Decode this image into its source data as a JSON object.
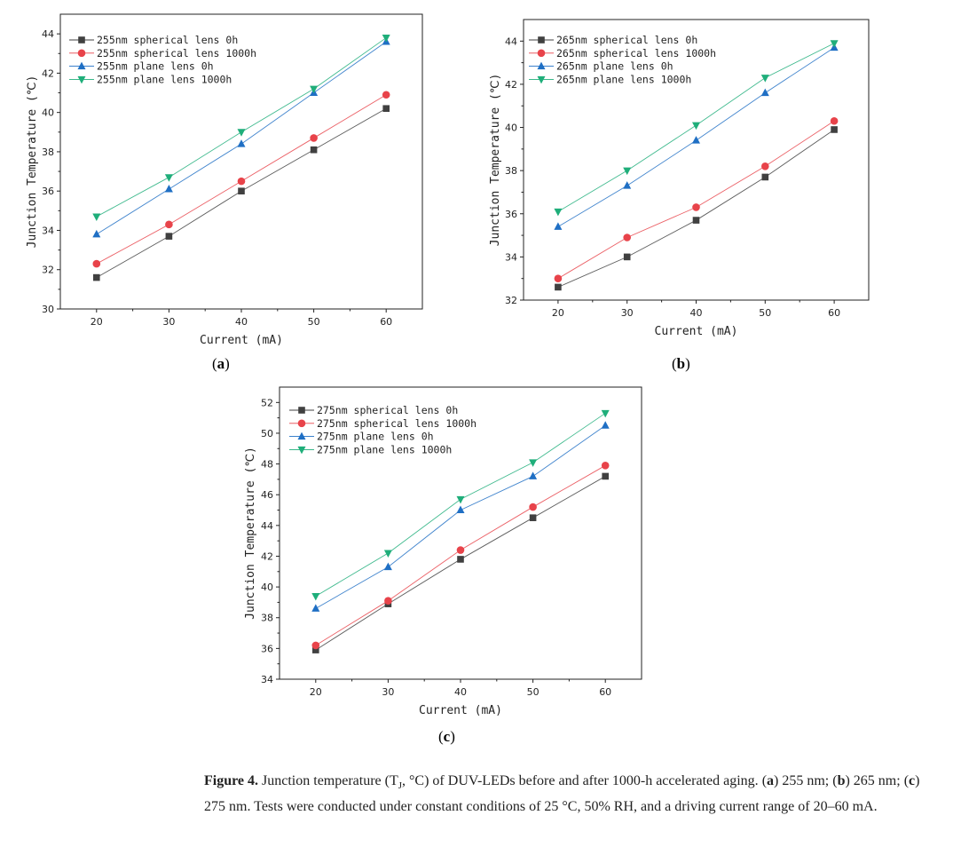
{
  "colors": {
    "spherical_0h": "#404040",
    "spherical_1000h": "#e8434a",
    "plane_0h": "#1f6fc4",
    "plane_1000h": "#1fae7a"
  },
  "chart_data": [
    {
      "id": "a",
      "type": "line",
      "xlabel": "Current (mA)",
      "ylabel": "Junction Temperature (℃)",
      "xlim": [
        15,
        65
      ],
      "ylim": [
        30,
        45
      ],
      "xticks": [
        20,
        30,
        40,
        50,
        60
      ],
      "yticks": [
        30,
        32,
        34,
        36,
        38,
        40,
        42,
        44
      ],
      "x": [
        20,
        30,
        40,
        50,
        60
      ],
      "legend_position": "top-left",
      "series": [
        {
          "name": "255nm spherical lens 0h",
          "marker": "square",
          "color": "#404040",
          "values": [
            31.6,
            33.7,
            36.0,
            38.1,
            40.2
          ]
        },
        {
          "name": "255nm spherical lens 1000h",
          "marker": "circle",
          "color": "#e8434a",
          "values": [
            32.3,
            34.3,
            36.5,
            38.7,
            40.9
          ]
        },
        {
          "name": "255nm plane lens 0h",
          "marker": "triangle-up",
          "color": "#1f6fc4",
          "values": [
            33.8,
            36.1,
            38.4,
            41.0,
            43.6
          ]
        },
        {
          "name": "255nm plane lens 1000h",
          "marker": "triangle-down",
          "color": "#1fae7a",
          "values": [
            34.7,
            36.7,
            39.0,
            41.2,
            43.8
          ]
        }
      ]
    },
    {
      "id": "b",
      "type": "line",
      "xlabel": "Current (mA)",
      "ylabel": "Junction Temperature (℃)",
      "xlim": [
        15,
        65
      ],
      "ylim": [
        32,
        45
      ],
      "xticks": [
        20,
        30,
        40,
        50,
        60
      ],
      "yticks": [
        32,
        34,
        36,
        38,
        40,
        42,
        44
      ],
      "x": [
        20,
        30,
        40,
        50,
        60
      ],
      "legend_position": "top-left",
      "series": [
        {
          "name": "265nm spherical lens 0h",
          "marker": "square",
          "color": "#404040",
          "values": [
            32.6,
            34.0,
            35.7,
            37.7,
            39.9
          ]
        },
        {
          "name": "265nm spherical lens 1000h",
          "marker": "circle",
          "color": "#e8434a",
          "values": [
            33.0,
            34.9,
            36.3,
            38.2,
            40.3
          ]
        },
        {
          "name": "265nm plane lens 0h",
          "marker": "triangle-up",
          "color": "#1f6fc4",
          "values": [
            35.4,
            37.3,
            39.4,
            41.6,
            43.7
          ]
        },
        {
          "name": "265nm plane lens 1000h",
          "marker": "triangle-down",
          "color": "#1fae7a",
          "values": [
            36.1,
            38.0,
            40.1,
            42.3,
            43.9
          ]
        }
      ]
    },
    {
      "id": "c",
      "type": "line",
      "xlabel": "Current (mA)",
      "ylabel": "Junction Temperature (℃)",
      "xlim": [
        15,
        65
      ],
      "ylim": [
        34,
        53
      ],
      "xticks": [
        20,
        30,
        40,
        50,
        60
      ],
      "yticks": [
        34,
        36,
        38,
        40,
        42,
        44,
        46,
        48,
        50,
        52
      ],
      "x": [
        20,
        30,
        40,
        50,
        60
      ],
      "legend_position": "top-left",
      "series": [
        {
          "name": "275nm spherical lens 0h",
          "marker": "square",
          "color": "#404040",
          "values": [
            35.9,
            38.9,
            41.8,
            44.5,
            47.2
          ]
        },
        {
          "name": "275nm spherical lens 1000h",
          "marker": "circle",
          "color": "#e8434a",
          "values": [
            36.2,
            39.1,
            42.4,
            45.2,
            47.9
          ]
        },
        {
          "name": "275nm plane lens 0h",
          "marker": "triangle-up",
          "color": "#1f6fc4",
          "values": [
            38.6,
            41.3,
            45.0,
            47.2,
            50.5
          ]
        },
        {
          "name": "275nm plane lens 1000h",
          "marker": "triangle-down",
          "color": "#1fae7a",
          "values": [
            39.4,
            42.2,
            45.7,
            48.1,
            51.3
          ]
        }
      ]
    }
  ],
  "panel_labels": {
    "a": "a",
    "b": "b",
    "c": "c"
  },
  "caption": {
    "title": "Figure 4.",
    "text_1": "Junction temperature (T",
    "subscript": "J",
    "text_2": ", °C) of DUV-LEDs before and after 1000-h accelerated aging.",
    "part_a": "a",
    "part_a_text": "255 nm;",
    "part_b": "b",
    "part_b_text": "265 nm;",
    "part_c": "c",
    "part_c_text": "275 nm. Tests were conducted under constant conditions of 25 °C, 50% RH, and a driving current range of 20–60 mA."
  }
}
